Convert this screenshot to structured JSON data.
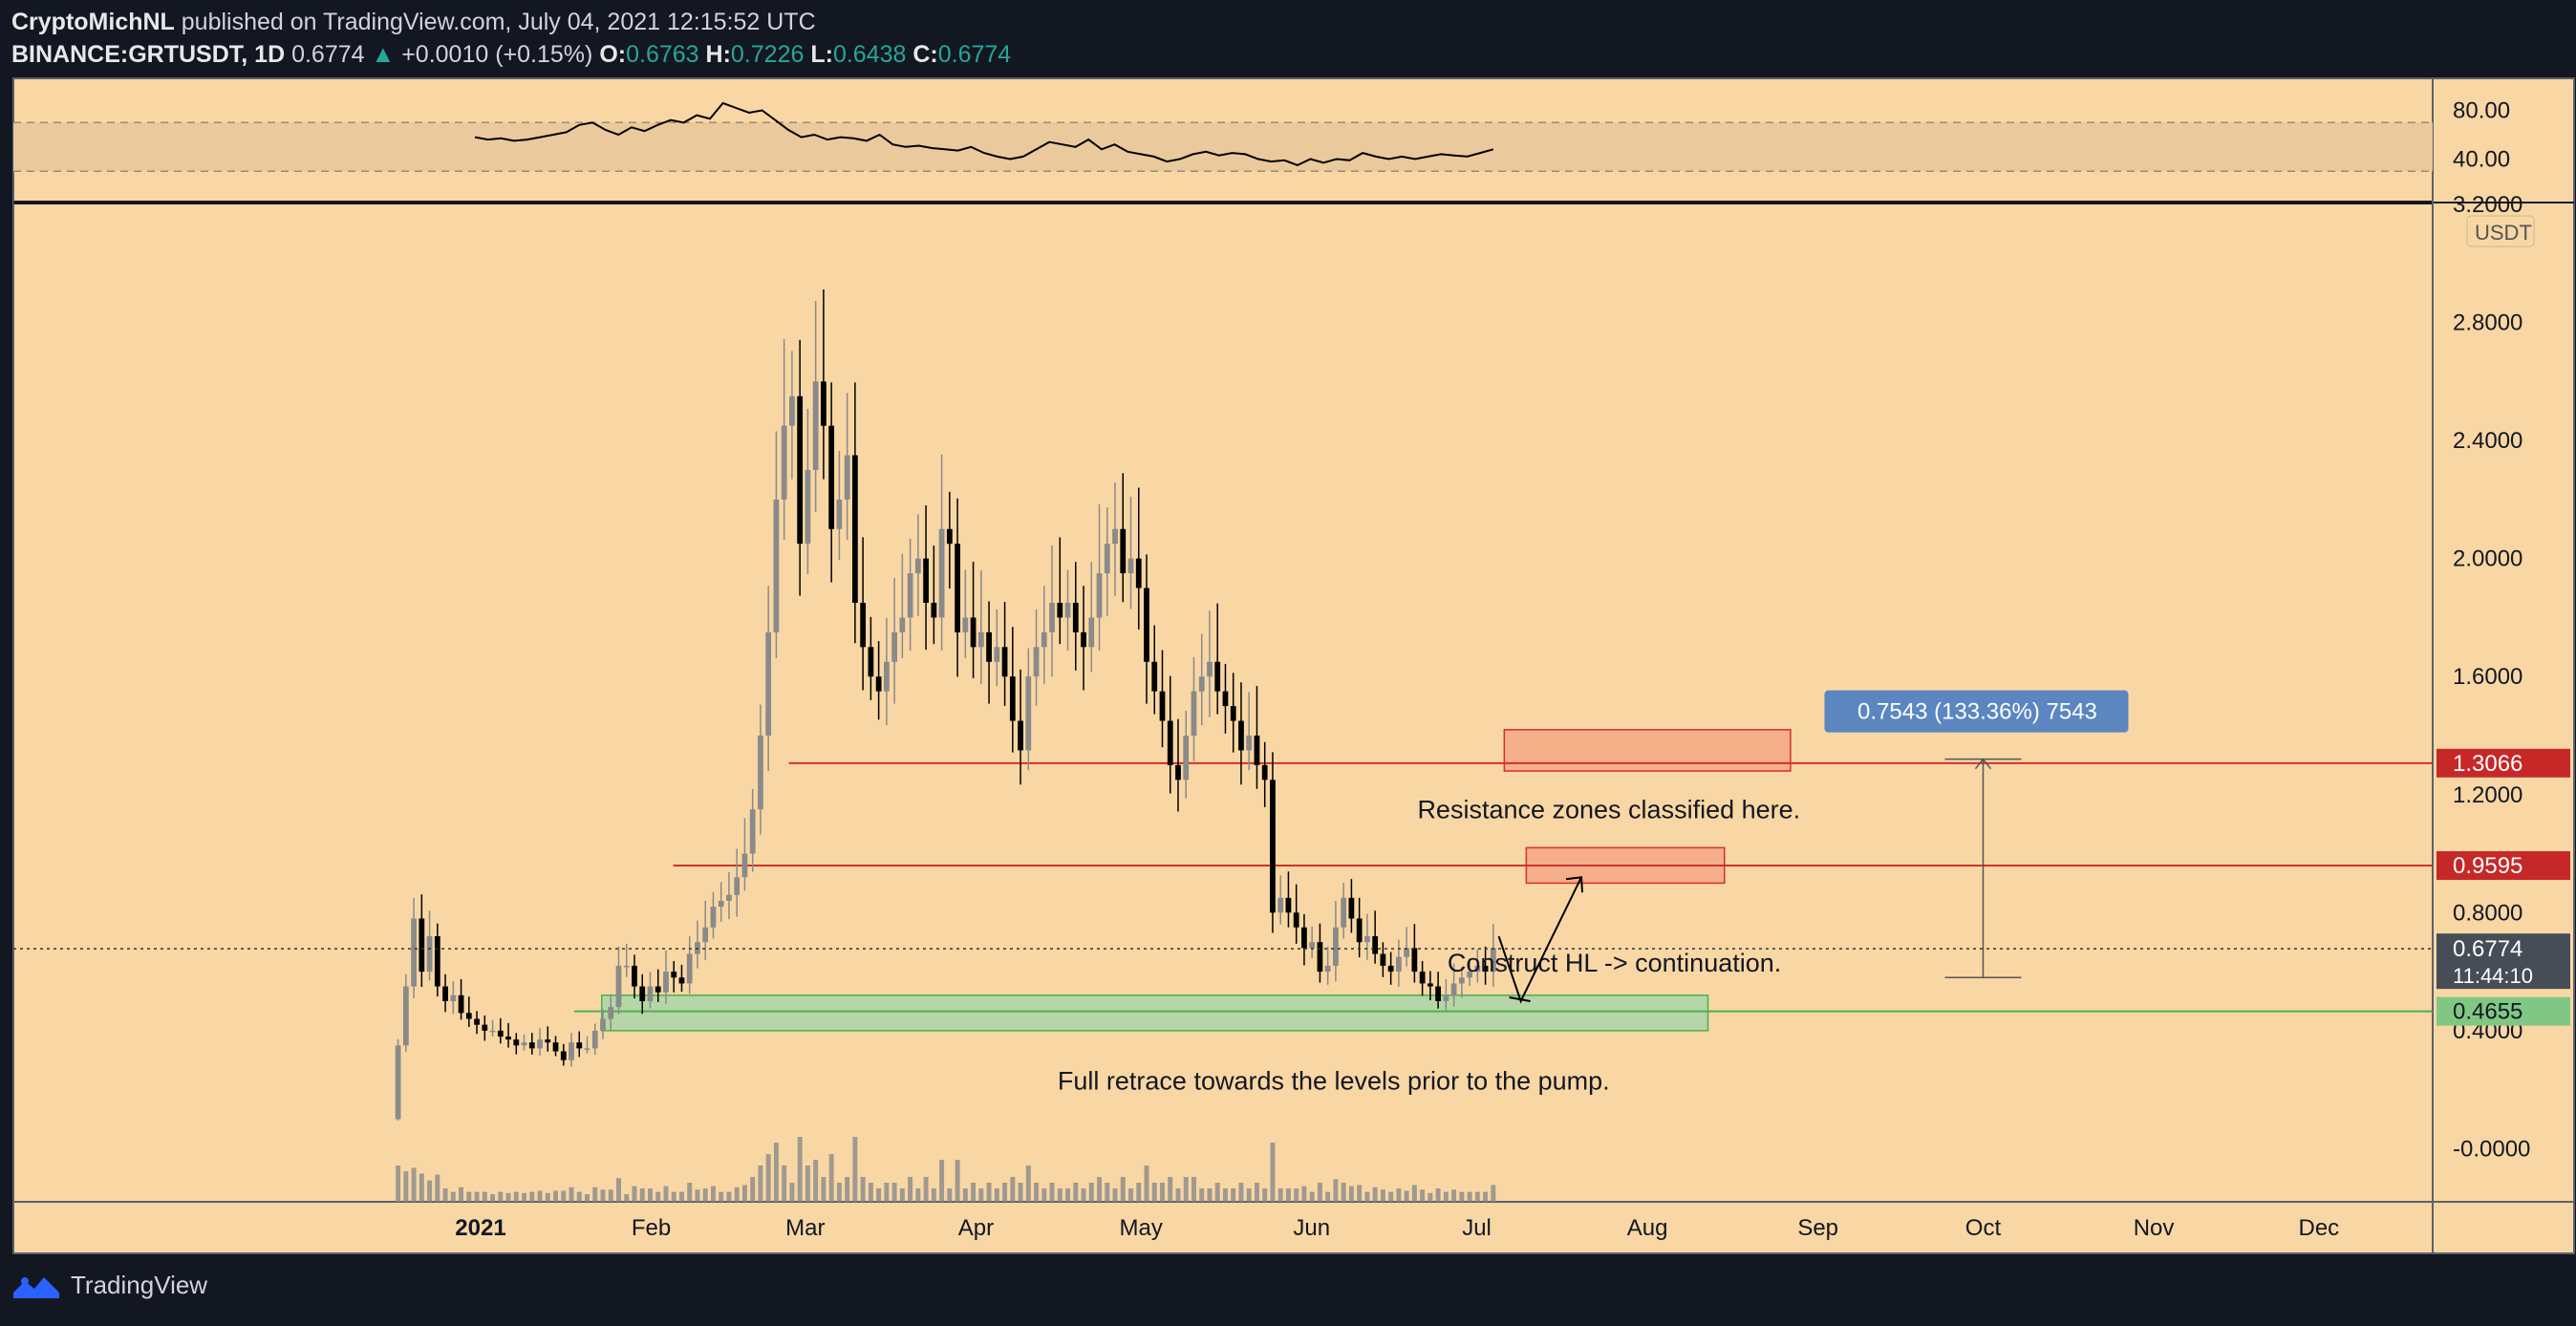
{
  "header": {
    "publisher": "CryptoMichNL",
    "published_text": "published on TradingView.com, July 04, 2021 12:15:52 UTC",
    "symbol": "BINANCE:GRTUSDT, 1D",
    "last_price": "0.6774",
    "change_arrow": "▲",
    "change": "+0.0010 (+0.15%)",
    "o_label": "O:",
    "o_value": "0.6763",
    "h_label": "H:",
    "h_value": "0.7226",
    "l_label": "L:",
    "l_value": "0.6438",
    "c_label": "C:",
    "c_value": "0.6774"
  },
  "footer": {
    "brand": "TradingView"
  },
  "colors": {
    "background": "#f8d7a4",
    "frame": "#131722",
    "axis_text": "#131722",
    "up_candle": "#8a8a8a",
    "down_candle": "#000000",
    "resistance_line": "#d32f2f",
    "support_zone": "#a5d6a7",
    "resistance_zone": "#f4a582",
    "measure_label": "#5b86c0"
  },
  "rsi": {
    "tick_labels": [
      "80.00",
      "40.00"
    ],
    "values": [
      58,
      56,
      57,
      55,
      56,
      58,
      60,
      62,
      68,
      70,
      64,
      60,
      66,
      63,
      68,
      72,
      70,
      76,
      73,
      86,
      82,
      78,
      80,
      72,
      64,
      58,
      60,
      56,
      58,
      57,
      55,
      60,
      52,
      50,
      51,
      49,
      48,
      47,
      50,
      45,
      42,
      40,
      42,
      48,
      54,
      52,
      50,
      56,
      48,
      52,
      46,
      44,
      42,
      38,
      40,
      44,
      46,
      43,
      45,
      44,
      40,
      38,
      39,
      35,
      40,
      37,
      40,
      39,
      45,
      42,
      40,
      42,
      40,
      42,
      44,
      43,
      42,
      45,
      48
    ]
  },
  "chart_data": {
    "type": "candlestick",
    "title": "BINANCE:GRTUSDT, 1D",
    "price_unit": "USDT",
    "ylim": [
      -0.18,
      3.2
    ],
    "y_ticks": [
      "3.2000",
      "2.8000",
      "2.4000",
      "2.0000",
      "1.6000",
      "1.2000",
      "0.8000",
      "0.4000",
      "-0.0000"
    ],
    "x_ticks": [
      "2021",
      "Feb",
      "Mar",
      "Apr",
      "May",
      "Jun",
      "Jul",
      "Aug",
      "Sep",
      "Oct",
      "Nov",
      "Dec"
    ],
    "candles_start": "2020-12-17",
    "close": [
      0.35,
      0.55,
      0.78,
      0.6,
      0.72,
      0.55,
      0.5,
      0.52,
      0.46,
      0.44,
      0.42,
      0.4,
      0.4,
      0.38,
      0.37,
      0.35,
      0.36,
      0.34,
      0.37,
      0.36,
      0.33,
      0.3,
      0.36,
      0.34,
      0.34,
      0.4,
      0.44,
      0.48,
      0.62,
      0.62,
      0.55,
      0.5,
      0.55,
      0.53,
      0.6,
      0.58,
      0.56,
      0.66,
      0.7,
      0.75,
      0.82,
      0.84,
      0.86,
      0.92,
      1.0,
      1.15,
      1.4,
      1.75,
      2.2,
      2.45,
      2.55,
      2.05,
      2.3,
      2.6,
      2.45,
      2.1,
      2.2,
      2.35,
      1.85,
      1.7,
      1.6,
      1.55,
      1.65,
      1.75,
      1.8,
      1.95,
      2.0,
      1.85,
      1.8,
      2.1,
      2.05,
      1.75,
      1.8,
      1.7,
      1.75,
      1.65,
      1.7,
      1.6,
      1.45,
      1.35,
      1.6,
      1.7,
      1.75,
      1.85,
      1.8,
      1.85,
      1.75,
      1.7,
      1.8,
      1.95,
      2.05,
      2.1,
      1.95,
      2.0,
      1.9,
      1.65,
      1.55,
      1.45,
      1.3,
      1.25,
      1.4,
      1.55,
      1.6,
      1.65,
      1.55,
      1.5,
      1.45,
      1.35,
      1.4,
      1.3,
      1.25,
      0.8,
      0.85,
      0.8,
      0.75,
      0.68,
      0.7,
      0.6,
      0.62,
      0.75,
      0.85,
      0.78,
      0.7,
      0.72,
      0.66,
      0.62,
      0.6,
      0.65,
      0.68,
      0.6,
      0.56,
      0.55,
      0.5,
      0.52,
      0.56,
      0.58,
      0.6,
      0.62,
      0.6,
      0.68
    ],
    "candles_end": "2021-07-04",
    "last_price_label": "0.6774",
    "countdown_label": "11:44:10",
    "horizontal_levels": [
      {
        "price": 1.3066,
        "label": "1.3066",
        "style": "resistance"
      },
      {
        "price": 0.9595,
        "label": "0.9595",
        "style": "resistance"
      },
      {
        "price": 0.4655,
        "label": "0.4655",
        "style": "support"
      }
    ],
    "zones": [
      {
        "name": "resistance-zone-upper",
        "from_date": "2021-07-06",
        "to_date": "2021-08-27",
        "low": 1.28,
        "high": 1.42
      },
      {
        "name": "resistance-zone-lower",
        "from_date": "2021-07-10",
        "to_date": "2021-08-15",
        "low": 0.9,
        "high": 1.02
      },
      {
        "name": "support-zone",
        "from_date": "2021-01-23",
        "to_date": "2021-08-12",
        "low": 0.4,
        "high": 0.52
      }
    ],
    "annotations": [
      {
        "text": "Resistance zones classified here.",
        "date": "2021-07-25",
        "price": 1.12
      },
      {
        "text": "Construct HL -> continuation.",
        "date": "2021-07-26",
        "price": 0.6
      },
      {
        "text": "Full retrace towards the levels prior to the pump.",
        "date": "2021-06-05",
        "price": 0.2
      }
    ],
    "measure": {
      "label": "0.7543 (133.36%) 7543",
      "from_price": 0.58,
      "to_price": 1.32,
      "date": "2021-10-01"
    }
  }
}
